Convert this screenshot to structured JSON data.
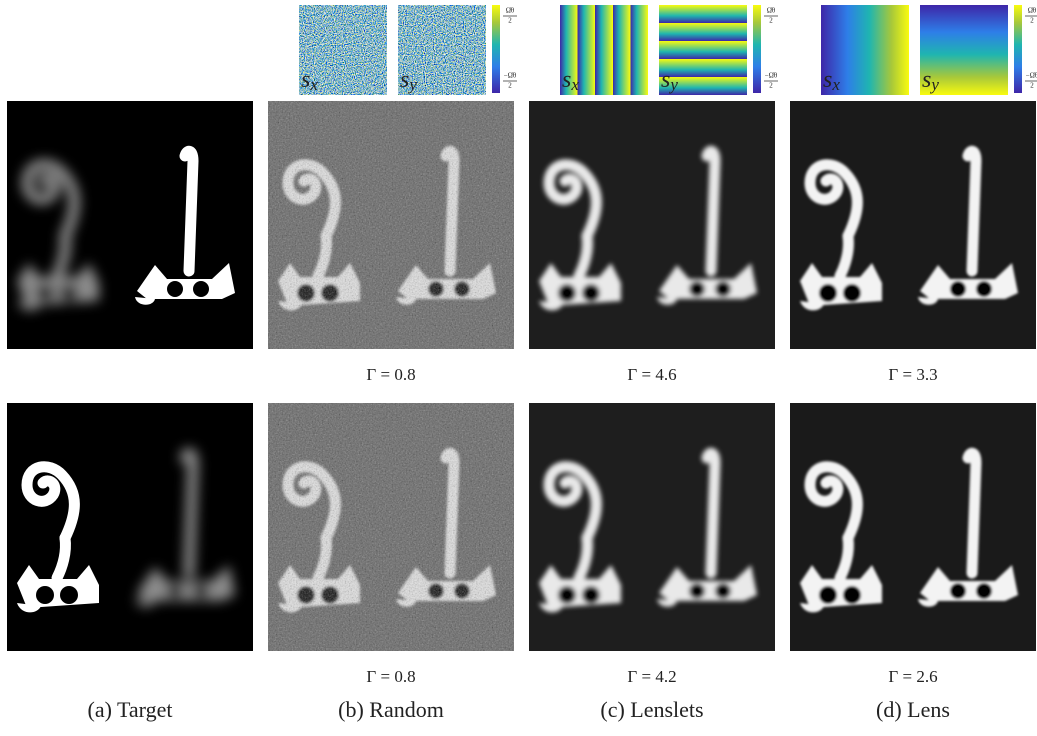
{
  "panels": [
    {
      "caption": "(a) Target"
    },
    {
      "caption": "(b) Random",
      "gamma": [
        "Γ = 0.8",
        "Γ = 0.8"
      ],
      "maps": [
        {
          "base": "s",
          "sub": "x"
        },
        {
          "base": "s",
          "sub": "y"
        }
      ]
    },
    {
      "caption": "(c) Lenslets",
      "gamma": [
        "Γ = 4.6",
        "Γ = 4.2"
      ],
      "maps": [
        {
          "base": "s",
          "sub": "x"
        },
        {
          "base": "s",
          "sub": "y"
        }
      ]
    },
    {
      "caption": "(d) Lens",
      "gamma": [
        "Γ = 3.3",
        "Γ = 2.6"
      ],
      "maps": [
        {
          "base": "s",
          "sub": "x"
        },
        {
          "base": "s",
          "sub": "y"
        }
      ]
    }
  ],
  "colorbar": {
    "top_num": "Ω̂θ",
    "top_den": "2",
    "bottom_num": "−Ω̂θ",
    "bottom_den": "2"
  }
}
